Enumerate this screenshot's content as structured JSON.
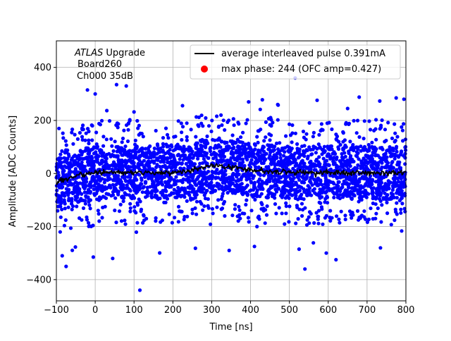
{
  "chart_data": {
    "type": "scatter",
    "title": "",
    "xlabel": "Time [ns]",
    "ylabel": "Amplitude [ADC Counts]",
    "xlim": [
      -100,
      800
    ],
    "ylim": [
      -480,
      500
    ],
    "x_ticks": [
      -100,
      0,
      100,
      200,
      300,
      400,
      500,
      600,
      700,
      800
    ],
    "y_ticks": [
      -400,
      -200,
      0,
      200,
      400
    ],
    "x_tick_labels": [
      "−100",
      "0",
      "100",
      "200",
      "300",
      "400",
      "500",
      "600",
      "700",
      "800"
    ],
    "y_tick_labels": [
      "−400",
      "−200",
      "0",
      "200",
      "400"
    ],
    "grid": true,
    "annotation": {
      "experiment": "ATLAS",
      "experiment_suffix": " Upgrade",
      "board": "Board260",
      "channel": "Ch000 35dB"
    },
    "legend": {
      "position": "top-right",
      "entries": [
        {
          "label": "average interleaved pulse 0.391mA",
          "color": "#000000",
          "marker": "line"
        },
        {
          "label": "max phase: 244 (OFC amp=0.427)",
          "color": "#ff0000",
          "marker": "dot"
        }
      ]
    },
    "series": [
      {
        "name": "average interleaved pulse 0.391mA",
        "kind": "line",
        "color": "#000000",
        "x": [
          -100,
          -80,
          -60,
          -40,
          -20,
          0,
          20,
          40,
          60,
          80,
          100,
          120,
          140,
          160,
          180,
          200,
          220,
          240,
          260,
          280,
          300,
          320,
          340,
          360,
          380,
          400,
          420,
          440,
          460,
          480,
          500,
          520,
          540,
          560,
          580,
          600,
          620,
          640,
          660,
          680,
          700,
          720,
          740,
          760,
          780,
          800
        ],
        "y": [
          -32,
          -22,
          -14,
          -9,
          -3,
          2,
          4,
          5,
          6,
          5,
          5,
          4,
          3,
          3,
          4,
          4,
          6,
          12,
          18,
          24,
          28,
          29,
          27,
          23,
          18,
          14,
          11,
          8,
          6,
          6,
          5,
          4,
          3,
          4,
          3,
          3,
          3,
          2,
          2,
          3,
          2,
          3,
          2,
          3,
          3,
          3
        ]
      },
      {
        "name": "",
        "kind": "scatter",
        "color": "#0000ff",
        "x_range": [
          -100,
          800
        ],
        "core_half_width": 100,
        "envelope_half_width": 200,
        "outliers": [
          {
            "x": -20,
            "y": 315
          },
          {
            "x": 0,
            "y": 300
          },
          {
            "x": 55,
            "y": 335
          },
          {
            "x": 80,
            "y": 330
          },
          {
            "x": 515,
            "y": 360
          },
          {
            "x": 395,
            "y": 270
          },
          {
            "x": 470,
            "y": 260
          },
          {
            "x": 650,
            "y": 245
          },
          {
            "x": 775,
            "y": 285
          },
          {
            "x": 795,
            "y": 280
          },
          {
            "x": 30,
            "y": 237
          },
          {
            "x": 100,
            "y": 232
          },
          {
            "x": 115,
            "y": -440
          },
          {
            "x": 540,
            "y": -360
          },
          {
            "x": -75,
            "y": -350
          },
          {
            "x": 620,
            "y": -325
          },
          {
            "x": -85,
            "y": -310
          },
          {
            "x": 45,
            "y": -320
          },
          {
            "x": -5,
            "y": -315
          },
          {
            "x": 345,
            "y": -290
          },
          {
            "x": 410,
            "y": -275
          },
          {
            "x": 258,
            "y": -282
          },
          {
            "x": 595,
            "y": -300
          },
          {
            "x": 525,
            "y": -285
          }
        ]
      },
      {
        "name": "max phase: 244 (OFC amp=0.427)",
        "kind": "marker",
        "color": "#ff0000",
        "x": [],
        "y": []
      }
    ]
  }
}
